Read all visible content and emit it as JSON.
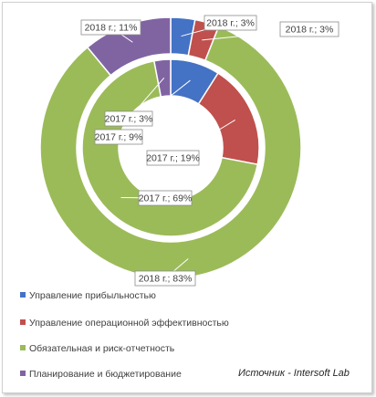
{
  "chart_data": {
    "type": "donut",
    "rings": [
      {
        "name": "2017 г.",
        "position": "inner",
        "values": [
          9,
          19,
          69,
          3
        ],
        "labels": [
          "2017 г.; 9%",
          "2017 г.; 19%",
          "2017 г.; 69%",
          "2017 г.; 3%"
        ]
      },
      {
        "name": "2018 г.",
        "position": "outer",
        "values": [
          3,
          3,
          83,
          11
        ],
        "labels": [
          "2018 г.; 3%",
          "2018 г.; 3%",
          "2018 г.; 83%",
          "2018 г.; 11%"
        ]
      }
    ],
    "categories": [
      "Управление прибыльностью",
      "Управление операционной эффективностью",
      "Обязательная и риск-отчетность",
      "Планирование и бюджетирование"
    ],
    "colors": [
      "#4472c4",
      "#c0504d",
      "#9bbb59",
      "#8064a2"
    ],
    "legend_position": "bottom-left"
  },
  "source": {
    "label": "Источник",
    "separator": "-",
    "name": "Intersoft Lab"
  }
}
